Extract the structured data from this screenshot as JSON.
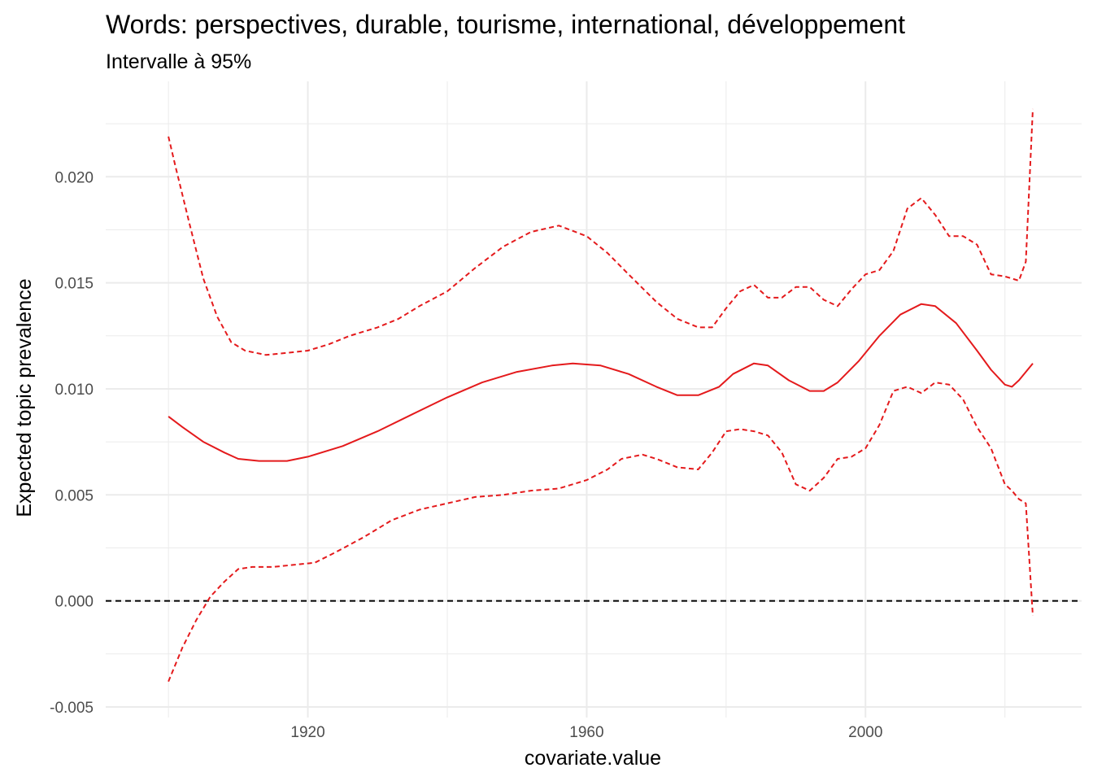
{
  "chart_data": {
    "type": "line",
    "title": "Words: perspectives, durable, tourisme, international, développement",
    "subtitle": "Intervalle à 95%",
    "xlabel": "covariate.value",
    "ylabel": "Expected topic prevalence",
    "xlim": [
      1891,
      2031
    ],
    "ylim": [
      -0.0055,
      0.0245
    ],
    "x_ticks": [
      1920,
      1960,
      2000
    ],
    "x_tick_labels": [
      "1920",
      "1960",
      "2000"
    ],
    "x_minor_ticks": [
      1900,
      1940,
      1980,
      2020
    ],
    "y_ticks": [
      -0.005,
      0,
      0.005,
      0.01,
      0.015,
      0.02
    ],
    "y_tick_labels": [
      "-0.005",
      "0.000",
      "0.005",
      "0.010",
      "0.015",
      "0.020"
    ],
    "y_minor_ticks": [
      -0.0025,
      0.0025,
      0.0075,
      0.0125,
      0.0175,
      0.0225
    ],
    "grid": true,
    "reference_line": {
      "y": 0,
      "color": "#000000",
      "style": "dashed"
    },
    "colors": {
      "series": "#e41a1c",
      "grid": "#ebebeb",
      "tick_text": "#4d4d4d"
    },
    "series": [
      {
        "style": "solid",
        "x": [
          1900,
          1902,
          1905,
          1908,
          1910,
          1913,
          1917,
          1920,
          1925,
          1930,
          1935,
          1940,
          1945,
          1950,
          1955,
          1958,
          1962,
          1966,
          1970,
          1973,
          1976,
          1979,
          1981,
          1984,
          1986,
          1989,
          1992,
          1994,
          1996,
          1999,
          2002,
          2005,
          2008,
          2010,
          2013,
          2016,
          2018,
          2020,
          2021,
          2022,
          2024
        ],
        "y": [
          0.0087,
          0.0082,
          0.0075,
          0.007,
          0.0067,
          0.0066,
          0.0066,
          0.0068,
          0.0073,
          0.008,
          0.0088,
          0.0096,
          0.0103,
          0.0108,
          0.0111,
          0.0112,
          0.0111,
          0.0107,
          0.0101,
          0.0097,
          0.0097,
          0.0101,
          0.0107,
          0.0112,
          0.0111,
          0.0104,
          0.0099,
          0.0099,
          0.0103,
          0.0113,
          0.0125,
          0.0135,
          0.014,
          0.0139,
          0.0131,
          0.0118,
          0.0109,
          0.0102,
          0.0101,
          0.0104,
          0.0112
        ]
      },
      {
        "style": "dashed",
        "x": [
          1900,
          1901,
          1903,
          1905,
          1907,
          1909,
          1911,
          1914,
          1917,
          1920,
          1923,
          1926,
          1930,
          1933,
          1936,
          1940,
          1944,
          1948,
          1952,
          1956,
          1960,
          1963,
          1966,
          1970,
          1973,
          1976,
          1978,
          1980,
          1982,
          1984,
          1986,
          1988,
          1990,
          1992,
          1994,
          1996,
          1998,
          2000,
          2002,
          2004,
          2006,
          2008,
          2010,
          2012,
          2014,
          2016,
          2018,
          2020,
          2021,
          2022,
          2023,
          2024
        ],
        "y": [
          0.0219,
          0.0205,
          0.0178,
          0.0152,
          0.0134,
          0.0122,
          0.0118,
          0.0116,
          0.0117,
          0.0118,
          0.0121,
          0.0125,
          0.0129,
          0.0133,
          0.0139,
          0.0146,
          0.0157,
          0.0167,
          0.0174,
          0.0177,
          0.0172,
          0.0164,
          0.0154,
          0.0141,
          0.0133,
          0.0129,
          0.0129,
          0.0138,
          0.0146,
          0.0149,
          0.0143,
          0.0143,
          0.0148,
          0.0148,
          0.0142,
          0.0139,
          0.0147,
          0.0154,
          0.0156,
          0.0165,
          0.0185,
          0.019,
          0.0182,
          0.0172,
          0.0172,
          0.0168,
          0.0154,
          0.0153,
          0.0152,
          0.0151,
          0.016,
          0.0232
        ]
      },
      {
        "style": "dashed",
        "x": [
          1900,
          1902,
          1904,
          1906,
          1908,
          1910,
          1912,
          1915,
          1918,
          1921,
          1924,
          1928,
          1932,
          1936,
          1940,
          1944,
          1948,
          1952,
          1956,
          1960,
          1963,
          1965,
          1968,
          1970,
          1973,
          1976,
          1978,
          1980,
          1982,
          1984,
          1986,
          1988,
          1990,
          1992,
          1994,
          1996,
          1998,
          2000,
          2002,
          2004,
          2006,
          2008,
          2010,
          2012,
          2014,
          2016,
          2018,
          2020,
          2021,
          2022,
          2023,
          2024
        ],
        "y": [
          -0.0038,
          -0.0022,
          -0.0009,
          0.0002,
          0.0009,
          0.0015,
          0.0016,
          0.0016,
          0.0017,
          0.0018,
          0.0023,
          0.003,
          0.0038,
          0.0043,
          0.0046,
          0.0049,
          0.005,
          0.0052,
          0.0053,
          0.0057,
          0.0062,
          0.0067,
          0.0069,
          0.0067,
          0.0063,
          0.0062,
          0.007,
          0.008,
          0.0081,
          0.008,
          0.0078,
          0.007,
          0.0055,
          0.0052,
          0.0058,
          0.0067,
          0.0068,
          0.0072,
          0.0083,
          0.0099,
          0.0101,
          0.0098,
          0.0103,
          0.0102,
          0.0095,
          0.0082,
          0.0072,
          0.0055,
          0.0052,
          0.0048,
          0.0046,
          -0.0007
        ]
      }
    ]
  }
}
